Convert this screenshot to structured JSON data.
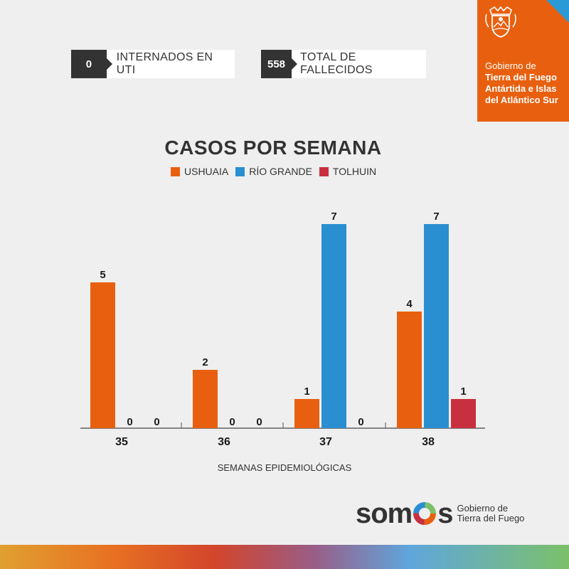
{
  "stats": [
    {
      "value": "0",
      "label": "INTERNADOS EN UTI"
    },
    {
      "value": "558",
      "label": "TOTAL DE FALLECIDOS"
    }
  ],
  "gov_badge": {
    "line1": "Gobierno de",
    "line2": "Tierra del Fuego",
    "line3": "Antártida e Islas",
    "line4": "del Atlántico Sur",
    "bg_color": "#e8600f",
    "corner_color": "#2a9ad6",
    "seal_icon": "coat-of-arms-icon"
  },
  "chart_data": {
    "type": "bar",
    "title": "CASOS POR SEMANA",
    "xlabel": "SEMANAS EPIDEMIOLÓGICAS",
    "ylabel": "",
    "categories": [
      "35",
      "36",
      "37",
      "38"
    ],
    "series": [
      {
        "name": "USHUAIA",
        "color": "#e8600f",
        "values": [
          5,
          2,
          1,
          4
        ]
      },
      {
        "name": "RÍO GRANDE",
        "color": "#2a8fd0",
        "values": [
          0,
          0,
          7,
          7
        ]
      },
      {
        "name": "TOLHUIN",
        "color": "#c8303f",
        "values": [
          0,
          0,
          0,
          1
        ]
      }
    ],
    "ylim": [
      0,
      7
    ],
    "grid": false,
    "legend_position": "top"
  },
  "footer": {
    "brand": "somos",
    "gov_line1": "Gobierno de",
    "gov_line2": "Tierra del Fuego"
  }
}
